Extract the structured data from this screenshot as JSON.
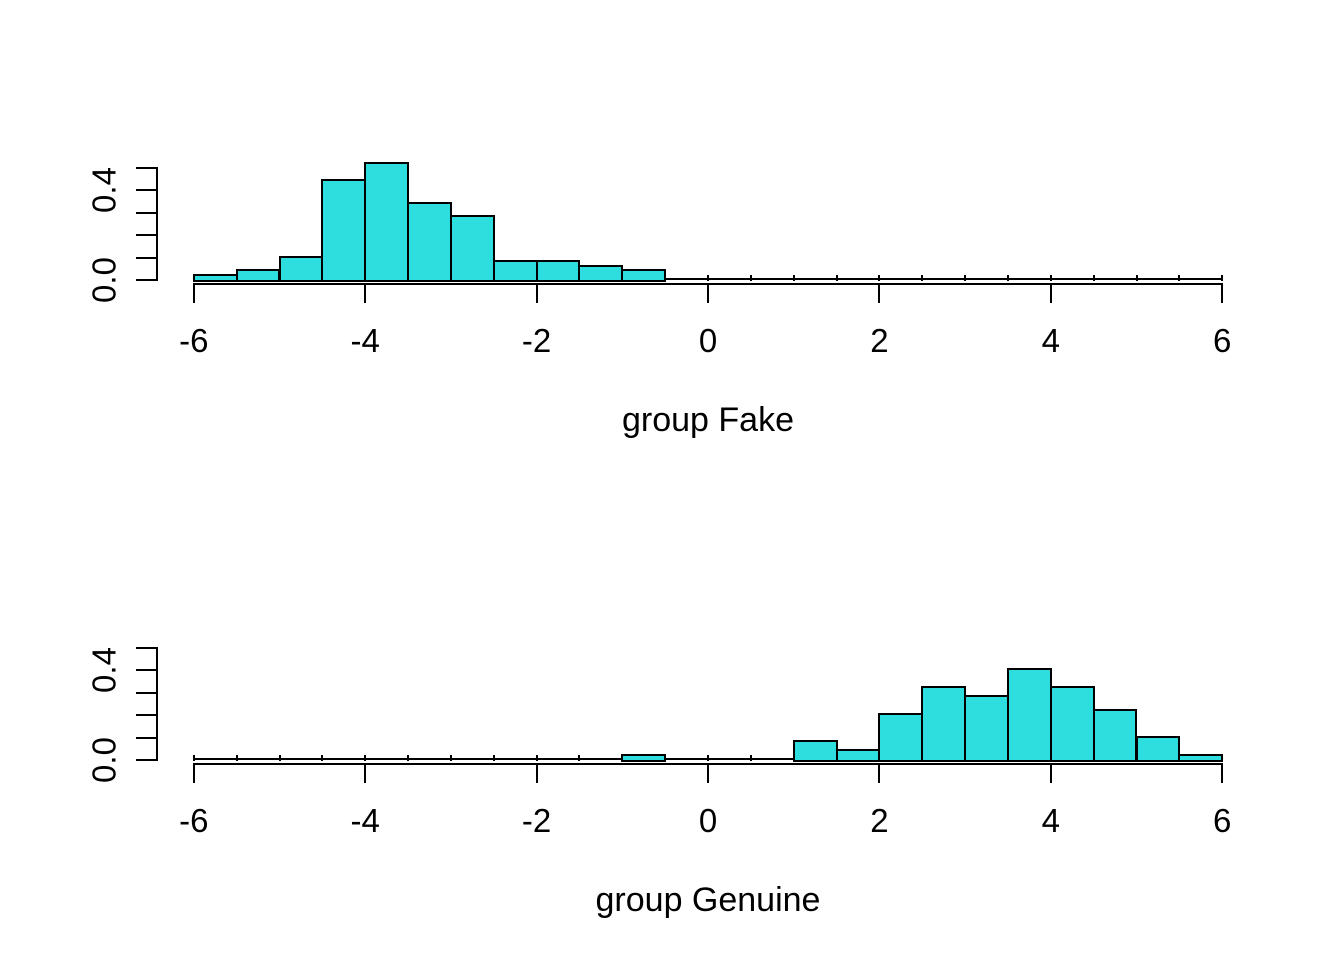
{
  "figure": {
    "background": "#ffffff",
    "bar_fill": "#2EDEDE",
    "bar_stroke": "#000000",
    "axis_color": "#000000",
    "text_color": "#000000"
  },
  "chart_data": [
    {
      "type": "bar",
      "subtype": "density-histogram",
      "panel": "top",
      "title": "",
      "xlabel": "group Fake",
      "ylabel": "",
      "xlim": [
        -6,
        6
      ],
      "ylim": [
        0,
        0.5
      ],
      "grid": false,
      "legend": false,
      "bin_width": 0.5,
      "bin_edges_start": -6,
      "x_tick_labels": [
        "-6",
        "-4",
        "-2",
        "0",
        "2",
        "4",
        "6"
      ],
      "x_tick_values": [
        -6,
        -4,
        -2,
        0,
        2,
        4,
        6
      ],
      "y_tick_values": [
        0,
        0.1,
        0.2,
        0.3,
        0.4,
        0.5
      ],
      "y_labeled_ticks": [
        {
          "value": 0.0,
          "label": "0.0"
        },
        {
          "value": 0.4,
          "label": "0.4"
        }
      ],
      "densities": [
        0.02,
        0.04,
        0.1,
        0.44,
        0.52,
        0.34,
        0.28,
        0.08,
        0.08,
        0.06,
        0.04,
        0,
        0,
        0,
        0,
        0,
        0,
        0,
        0,
        0,
        0,
        0,
        0,
        0
      ]
    },
    {
      "type": "bar",
      "subtype": "density-histogram",
      "panel": "bottom",
      "title": "",
      "xlabel": "group Genuine",
      "ylabel": "",
      "xlim": [
        -6,
        6
      ],
      "ylim": [
        0,
        0.5
      ],
      "grid": false,
      "legend": false,
      "bin_width": 0.5,
      "bin_edges_start": -6,
      "x_tick_labels": [
        "-6",
        "-4",
        "-2",
        "0",
        "2",
        "4",
        "6"
      ],
      "x_tick_values": [
        -6,
        -4,
        -2,
        0,
        2,
        4,
        6
      ],
      "y_tick_values": [
        0,
        0.1,
        0.2,
        0.3,
        0.4,
        0.5
      ],
      "y_labeled_ticks": [
        {
          "value": 0.0,
          "label": "0.0"
        },
        {
          "value": 0.4,
          "label": "0.4"
        }
      ],
      "densities": [
        0,
        0,
        0,
        0,
        0,
        0,
        0,
        0,
        0,
        0,
        0.02,
        0,
        0,
        0,
        0.08,
        0.04,
        0.2,
        0.32,
        0.28,
        0.4,
        0.32,
        0.22,
        0.1,
        0.02
      ]
    }
  ]
}
